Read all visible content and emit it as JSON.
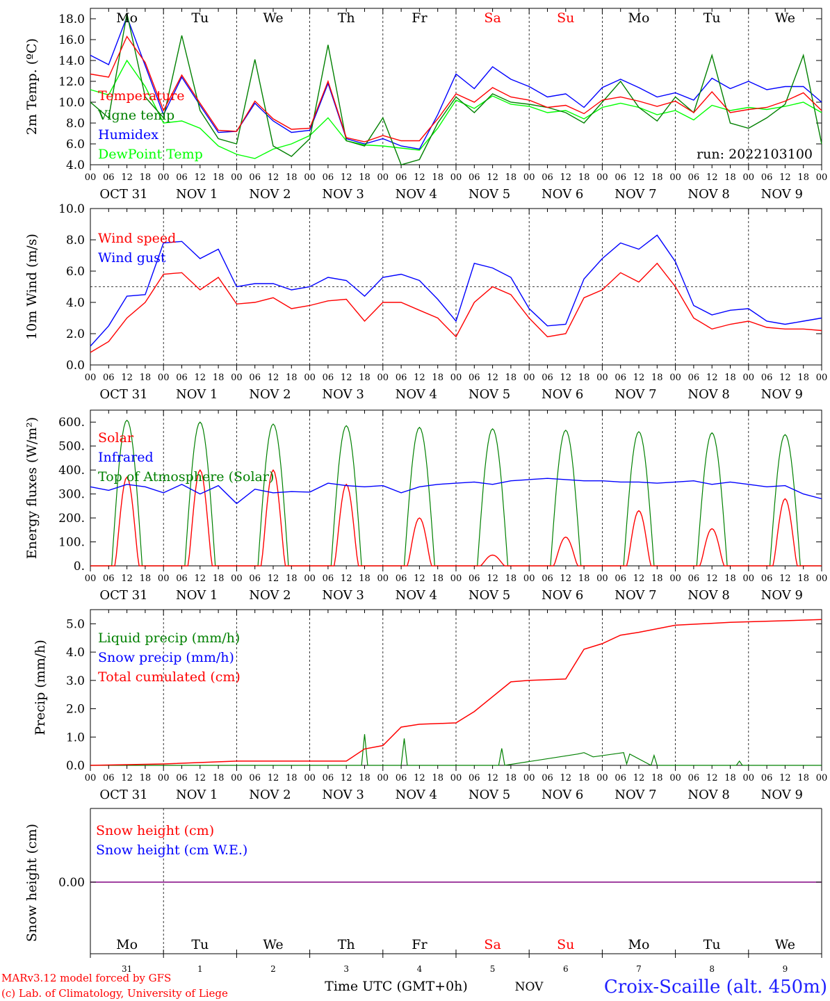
{
  "chart_data": [
    {
      "type": "line",
      "id": "temp",
      "ylabel": "2m Temp. (ºC)",
      "yticks": [
        "4.0",
        "6.0",
        "8.0",
        "10.0",
        "12.0",
        "14.0",
        "16.0",
        "18.0"
      ],
      "ylim": [
        4,
        19
      ],
      "top_day_labels": [
        {
          "text": "Mo",
          "color": "#000000"
        },
        {
          "text": "Tu",
          "color": "#000000"
        },
        {
          "text": "We",
          "color": "#000000"
        },
        {
          "text": "Th",
          "color": "#000000"
        },
        {
          "text": "Fr",
          "color": "#000000"
        },
        {
          "text": "Sa",
          "color": "#ff0000"
        },
        {
          "text": "Su",
          "color": "#ff0000"
        },
        {
          "text": "Mo",
          "color": "#000000"
        },
        {
          "text": "Tu",
          "color": "#000000"
        },
        {
          "text": "We",
          "color": "#000000"
        }
      ],
      "annotation": "run: 2022103100",
      "x_hours": [
        0,
        6,
        12,
        18,
        24,
        30,
        36,
        42,
        48,
        54,
        60,
        66,
        72,
        78,
        84,
        90,
        96,
        102,
        108,
        114,
        120,
        126,
        132,
        138,
        144,
        150,
        156,
        162,
        168,
        174,
        180,
        186,
        192,
        198,
        204,
        210,
        216,
        222,
        228,
        234,
        240
      ],
      "series": [
        {
          "name": "Temperature",
          "color": "#ff0000",
          "values": [
            12.7,
            12.4,
            16.3,
            13.8,
            9.2,
            12.6,
            9.9,
            7.3,
            7.2,
            10.1,
            8.4,
            7.4,
            7.5,
            12.0,
            6.6,
            6.2,
            6.8,
            6.3,
            6.3,
            8.4,
            10.8,
            10.0,
            11.4,
            10.5,
            10.2,
            9.5,
            9.7,
            8.9,
            10.2,
            10.5,
            10.1,
            9.6,
            10.1,
            9.0,
            11.0,
            9.0,
            9.3,
            9.5,
            10.1,
            10.9,
            9.2
          ]
        },
        {
          "name": "Vigne temp",
          "color": "#008000",
          "values": [
            10.0,
            8.5,
            18.5,
            10.5,
            8.5,
            16.4,
            9.2,
            6.5,
            6.0,
            14.1,
            5.8,
            4.8,
            6.5,
            15.5,
            6.3,
            5.8,
            8.5,
            4.0,
            4.5,
            8.0,
            10.5,
            9.0,
            10.8,
            10.0,
            9.8,
            9.5,
            9.0,
            8.0,
            10.0,
            12.0,
            9.5,
            8.2,
            10.5,
            9.0,
            14.5,
            8.0,
            7.5,
            8.5,
            9.8,
            14.5,
            6.0
          ]
        },
        {
          "name": "Humidex",
          "color": "#0000ff",
          "values": [
            14.5,
            13.6,
            18.2,
            13.5,
            8.8,
            12.4,
            9.7,
            7.1,
            7.2,
            9.9,
            8.2,
            7.1,
            7.3,
            11.8,
            6.5,
            6.0,
            6.5,
            5.8,
            5.5,
            8.8,
            12.7,
            11.3,
            13.4,
            12.2,
            11.5,
            10.5,
            10.8,
            9.5,
            11.4,
            12.2,
            11.4,
            10.5,
            10.9,
            10.2,
            12.3,
            11.3,
            12.0,
            11.2,
            11.5,
            11.5,
            10.0
          ]
        },
        {
          "name": "DewPoint Temp",
          "color": "#00ff00",
          "values": [
            11.2,
            10.7,
            14.0,
            11.5,
            8.0,
            8.2,
            7.5,
            5.8,
            5.0,
            4.6,
            5.5,
            6.0,
            6.8,
            8.5,
            6.3,
            5.9,
            5.8,
            5.6,
            5.4,
            7.5,
            10.2,
            9.4,
            10.6,
            9.8,
            9.6,
            9.0,
            9.2,
            8.4,
            9.5,
            9.9,
            9.5,
            8.8,
            9.2,
            8.3,
            9.7,
            9.2,
            9.5,
            9.3,
            9.6,
            10.0,
            9.0
          ]
        }
      ]
    },
    {
      "type": "line",
      "id": "wind",
      "ylabel": "10m Wind (m/s)",
      "yticks": [
        "0.0",
        "2.0",
        "4.0",
        "6.0",
        "8.0",
        "10.0"
      ],
      "ylim": [
        0,
        10
      ],
      "reference_line": 5,
      "x_hours": [
        0,
        6,
        12,
        18,
        24,
        30,
        36,
        42,
        48,
        54,
        60,
        66,
        72,
        78,
        84,
        90,
        96,
        102,
        108,
        114,
        120,
        126,
        132,
        138,
        144,
        150,
        156,
        162,
        168,
        174,
        180,
        186,
        192,
        198,
        204,
        210,
        216,
        222,
        228,
        234,
        240
      ],
      "series": [
        {
          "name": "Wind speed",
          "color": "#ff0000",
          "values": [
            0.8,
            1.5,
            3.0,
            4.0,
            5.8,
            5.9,
            4.8,
            5.6,
            3.9,
            4.0,
            4.3,
            3.6,
            3.8,
            4.1,
            4.2,
            2.8,
            4.0,
            4.0,
            3.5,
            3.0,
            1.8,
            4.0,
            5.0,
            4.5,
            3.0,
            1.8,
            2.0,
            4.3,
            4.8,
            5.9,
            5.3,
            6.5,
            5.0,
            3.0,
            2.3,
            2.6,
            2.8,
            2.4,
            2.3,
            2.3,
            2.2
          ]
        },
        {
          "name": "Wind gust",
          "color": "#0000ff",
          "values": [
            1.2,
            2.5,
            4.4,
            4.5,
            7.8,
            7.9,
            6.8,
            7.4,
            5.0,
            5.2,
            5.2,
            4.8,
            5.0,
            5.6,
            5.4,
            4.4,
            5.6,
            5.8,
            5.4,
            4.2,
            2.8,
            6.5,
            6.2,
            5.6,
            3.6,
            2.5,
            2.6,
            5.5,
            6.8,
            7.8,
            7.4,
            8.3,
            6.6,
            3.8,
            3.2,
            3.5,
            3.6,
            2.8,
            2.6,
            2.8,
            3.0
          ]
        }
      ]
    },
    {
      "type": "line",
      "id": "energy",
      "ylabel": "Energy fluxes (W/m²)",
      "yticks": [
        "0.",
        "100.",
        "200.",
        "300.",
        "400.",
        "500.",
        "600."
      ],
      "ylim": [
        0,
        650
      ],
      "infrared_hours": [
        0,
        6,
        12,
        18,
        24,
        30,
        36,
        42,
        48,
        54,
        60,
        66,
        72,
        78,
        84,
        90,
        96,
        102,
        108,
        114,
        120,
        126,
        132,
        138,
        144,
        150,
        156,
        162,
        168,
        174,
        180,
        186,
        192,
        198,
        204,
        210,
        216,
        222,
        228,
        234,
        240
      ],
      "infrared_values": [
        330,
        315,
        340,
        330,
        305,
        340,
        300,
        335,
        260,
        320,
        305,
        310,
        308,
        345,
        335,
        330,
        335,
        305,
        330,
        340,
        345,
        350,
        340,
        355,
        360,
        365,
        360,
        355,
        355,
        350,
        350,
        345,
        350,
        355,
        340,
        350,
        340,
        330,
        335,
        300,
        280
      ],
      "solar_peaks": [
        370,
        400,
        400,
        340,
        200,
        45,
        120,
        230,
        155,
        280
      ],
      "toa_peaks": [
        608,
        600,
        592,
        585,
        578,
        572,
        566,
        560,
        555,
        548
      ],
      "series": [
        {
          "name": "Solar",
          "color": "#ff0000"
        },
        {
          "name": "Infrared",
          "color": "#0000ff"
        },
        {
          "name": "Top of Atmosphere (Solar)",
          "color": "#008000"
        }
      ]
    },
    {
      "type": "line",
      "id": "precip",
      "ylabel": "Precip (mm/h)",
      "yticks": [
        "0.0",
        "1.0",
        "2.0",
        "3.0",
        "4.0",
        "5.0"
      ],
      "ylim": [
        0,
        5.5
      ],
      "cumulated_hours": [
        0,
        24,
        48,
        60,
        84,
        90,
        96,
        102,
        108,
        120,
        126,
        138,
        144,
        156,
        162,
        168,
        174,
        180,
        192,
        210,
        240
      ],
      "cumulated_values": [
        0,
        0.05,
        0.15,
        0.15,
        0.15,
        0.58,
        0.7,
        1.35,
        1.45,
        1.5,
        1.9,
        2.95,
        3.0,
        3.05,
        4.1,
        4.3,
        4.6,
        4.7,
        4.95,
        5.05,
        5.15
      ],
      "liquid_hours": [
        89,
        90,
        91,
        102,
        103,
        104,
        134,
        135,
        136,
        160,
        162,
        165,
        175,
        176,
        177,
        184,
        185,
        186,
        212,
        213,
        214
      ],
      "liquid_values": [
        0,
        1.1,
        0,
        0,
        0.95,
        0,
        0,
        0.6,
        0,
        0.4,
        0.45,
        0.3,
        0.45,
        0.05,
        0.4,
        0,
        0.35,
        0,
        0,
        0.15,
        0
      ],
      "series": [
        {
          "name": "Liquid precip (mm/h)",
          "color": "#008000"
        },
        {
          "name": "Snow precip (mm/h)",
          "color": "#0000ff"
        },
        {
          "name": "Total cumulated (cm)",
          "color": "#ff0000"
        }
      ]
    },
    {
      "type": "line",
      "id": "snow",
      "ylabel": "Snow height (cm)",
      "yticks": [
        "0.00"
      ],
      "value": 0.0,
      "series": [
        {
          "name": "Snow height (cm)",
          "color": "#ff0000"
        },
        {
          "name": "Snow height (cm W.E.)",
          "color": "#0000ff"
        }
      ]
    }
  ],
  "x_axis": {
    "hour_ticks": [
      "00",
      "06",
      "12",
      "18"
    ],
    "date_labels": [
      "OCT 31",
      "NOV  1",
      "NOV  2",
      "NOV  3",
      "NOV  4",
      "NOV  5",
      "NOV  6",
      "NOV  7",
      "NOV  8",
      "NOV  9"
    ],
    "bottom_days": [
      {
        "text": "Mo",
        "color": "#000000"
      },
      {
        "text": "Tu",
        "color": "#000000"
      },
      {
        "text": "We",
        "color": "#000000"
      },
      {
        "text": "Th",
        "color": "#000000"
      },
      {
        "text": "Fr",
        "color": "#000000"
      },
      {
        "text": "Sa",
        "color": "#ff0000"
      },
      {
        "text": "Su",
        "color": "#ff0000"
      },
      {
        "text": "Mo",
        "color": "#000000"
      },
      {
        "text": "Tu",
        "color": "#000000"
      },
      {
        "text": "We",
        "color": "#000000"
      }
    ],
    "bottom_dates": [
      "31",
      "1",
      "2",
      "3",
      "4",
      "5",
      "6",
      "7",
      "8",
      "9"
    ],
    "axis_title": "Time UTC (GMT+0h)",
    "month_label": "NOV"
  },
  "footer": {
    "model_line": "MARv3.12 model forced by GFS",
    "lab_line": "(c) Lab. of Climatology, University of Liege",
    "station": "Croix-Scaille (alt. 450m)"
  }
}
